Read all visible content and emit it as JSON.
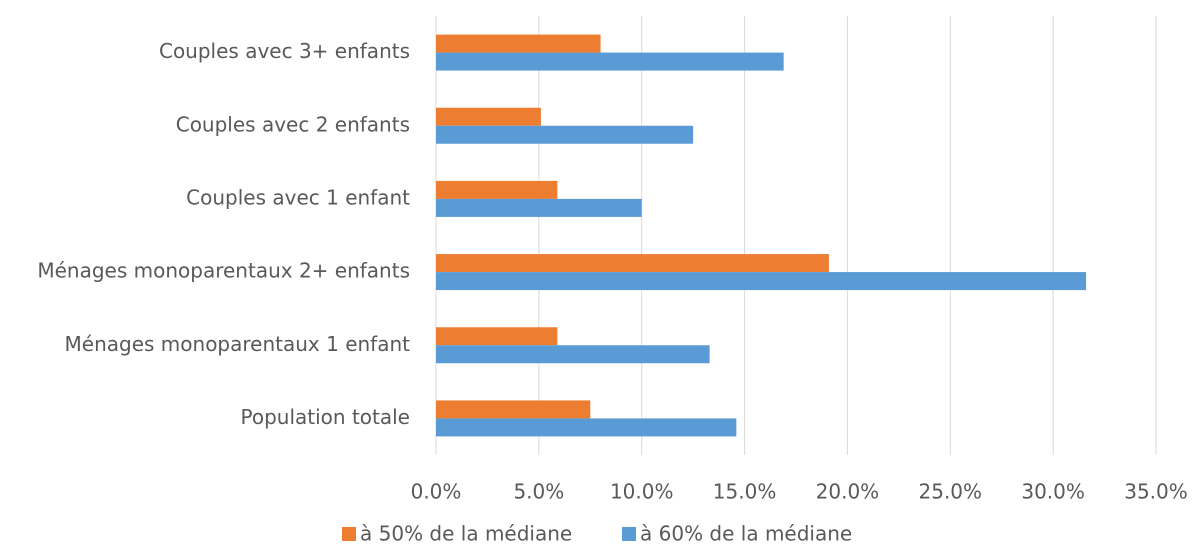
{
  "chart_data": {
    "type": "hbar",
    "categories": [
      "Couples avec 3+ enfants",
      "Couples avec 2 enfants",
      "Couples avec 1 enfant",
      "Ménages monoparentaux 2+ enfants",
      "Ménages monoparentaux 1 enfant",
      "Population totale"
    ],
    "series": [
      {
        "name": "à 50% de la médiane",
        "color": "#ED7D31",
        "values": [
          8.0,
          5.1,
          5.9,
          19.1,
          5.9,
          7.5
        ]
      },
      {
        "name": "à 60% de la médiane",
        "color": "#5B9BD5",
        "values": [
          16.9,
          12.5,
          10.0,
          31.6,
          13.3,
          14.6
        ]
      }
    ],
    "xlim": [
      0,
      35
    ],
    "xticks": [
      {
        "value": 0,
        "label": "0.0%"
      },
      {
        "value": 5,
        "label": "5.0%"
      },
      {
        "value": 10,
        "label": "10.0%"
      },
      {
        "value": 15,
        "label": "15.0%"
      },
      {
        "value": 20,
        "label": "20.0%"
      },
      {
        "value": 25,
        "label": "25.0%"
      },
      {
        "value": 30,
        "label": "30.0%"
      },
      {
        "value": 35,
        "label": "35.0%"
      }
    ],
    "grid": true,
    "legend": "bottom"
  }
}
